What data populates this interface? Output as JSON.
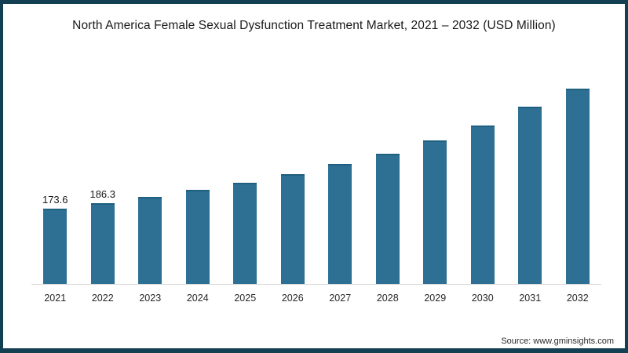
{
  "frame": {
    "border_color": "#123f51",
    "background_color": "#ffffff"
  },
  "title": "North America Female Sexual Dysfunction Treatment Market, 2021 – 2032 (USD Million)",
  "source": "Source: www.gminsights.com",
  "chart_data": {
    "type": "bar",
    "title": "North America Female Sexual Dysfunction Treatment Market, 2021 – 2032 (USD Million)",
    "categories": [
      "2021",
      "2022",
      "2023",
      "2024",
      "2025",
      "2026",
      "2027",
      "2028",
      "2029",
      "2030",
      "2031",
      "2032"
    ],
    "values": [
      173.6,
      186.3,
      200,
      217,
      234,
      254,
      277,
      301,
      331,
      366,
      408,
      450
    ],
    "data_labels": [
      "173.6",
      "186.3",
      null,
      null,
      null,
      null,
      null,
      null,
      null,
      null,
      null,
      null
    ],
    "xlabel": "",
    "ylabel": "",
    "ylim": [
      0,
      470
    ],
    "grid": false,
    "legend": false,
    "bar_color": "#2e7093",
    "bar_top_edge_color": "#1f5f7f",
    "axis_line_color": "#d9d9d9"
  }
}
